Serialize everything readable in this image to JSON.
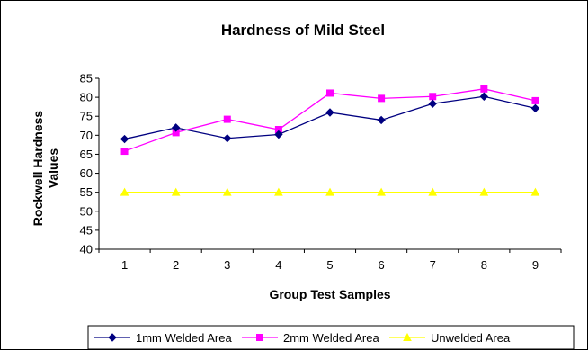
{
  "chart_data": {
    "type": "line",
    "title": "Hardness of Mild Steel",
    "xlabel": "Group Test Samples",
    "ylabel_lines": [
      "Rockwell Hardness",
      "Values"
    ],
    "categories": [
      "1",
      "2",
      "3",
      "4",
      "5",
      "6",
      "7",
      "8",
      "9"
    ],
    "ylim": [
      40,
      85
    ],
    "ytick_step": 5,
    "yticks": [
      "40",
      "45",
      "50",
      "55",
      "60",
      "65",
      "70",
      "75",
      "80",
      "85"
    ],
    "grid": false,
    "legend_position": "bottom",
    "series": [
      {
        "name": "1mm Welded Area",
        "marker": "diamond",
        "color": "#000080",
        "values": [
          69,
          72,
          69.2,
          70.2,
          76,
          74,
          78.3,
          80.2,
          77.1
        ]
      },
      {
        "name": "2mm Welded Area",
        "marker": "square",
        "color": "#FF00FF",
        "values": [
          65.8,
          70.7,
          74.2,
          71.5,
          81.1,
          79.7,
          80.2,
          82.2,
          79.1
        ]
      },
      {
        "name": "Unwelded Area",
        "marker": "triangle",
        "color": "#FFFF00",
        "values": [
          55,
          55,
          55,
          55,
          55,
          55,
          55,
          55,
          55
        ]
      }
    ]
  }
}
